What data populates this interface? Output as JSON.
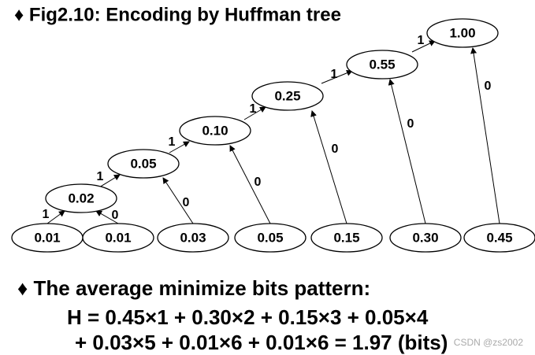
{
  "title": "♦ Fig2.10: Encoding by Huffman tree",
  "nodes": [
    {
      "label": "0.01"
    },
    {
      "label": "0.01"
    },
    {
      "label": "0.03"
    },
    {
      "label": "0.05"
    },
    {
      "label": "0.15"
    },
    {
      "label": "0.30"
    },
    {
      "label": "0.45"
    },
    {
      "label": "0.02"
    },
    {
      "label": "0.05"
    },
    {
      "label": "0.10"
    },
    {
      "label": "0.25"
    },
    {
      "label": "0.55"
    },
    {
      "label": "1.00"
    }
  ],
  "edges": [
    {
      "label": "1"
    },
    {
      "label": "0"
    },
    {
      "label": "1"
    },
    {
      "label": "0"
    },
    {
      "label": "1"
    },
    {
      "label": "0"
    },
    {
      "label": "1"
    },
    {
      "label": "0"
    },
    {
      "label": "1"
    },
    {
      "label": "0"
    },
    {
      "label": "1"
    },
    {
      "label": "0"
    }
  ],
  "section": {
    "heading": "♦ The average minimize bits pattern:",
    "lines": [
      "H = 0.45×1 + 0.30×2 + 0.15×3 + 0.05×4",
      "+ 0.03×5 + 0.01×6 + 0.01×6 = 1.97 (bits)"
    ]
  },
  "watermark": "CSDN @zs2002"
}
